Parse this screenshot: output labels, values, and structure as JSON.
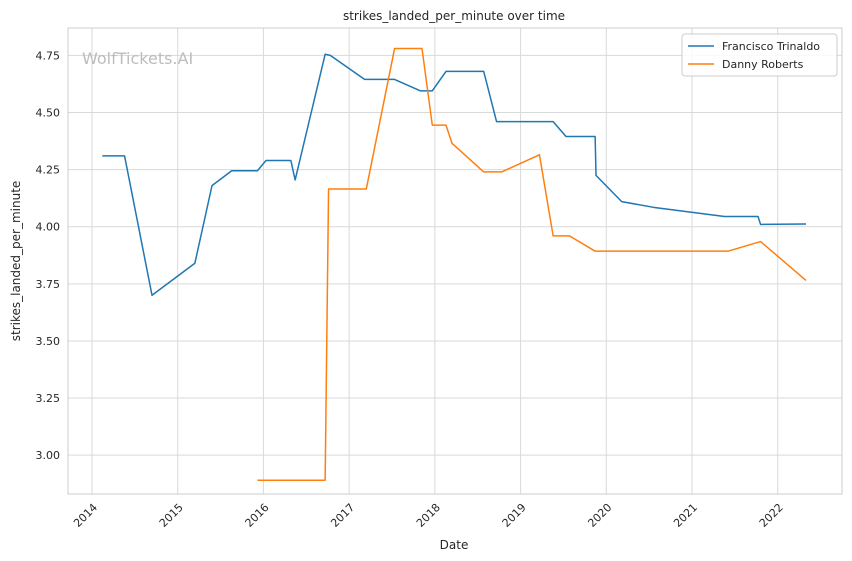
{
  "chart_data": {
    "type": "line",
    "title": "strikes_landed_per_minute over time",
    "xlabel": "Date",
    "ylabel": "strikes_landed_per_minute",
    "watermark": "WolfTickets.AI",
    "xlim": [
      2013.72,
      2022.75
    ],
    "ylim": [
      2.83,
      4.87
    ],
    "x_ticks": [
      2014,
      2015,
      2016,
      2017,
      2018,
      2019,
      2020,
      2021,
      2022
    ],
    "x_tick_labels": [
      "2014",
      "2015",
      "2016",
      "2017",
      "2018",
      "2019",
      "2020",
      "2021",
      "2022"
    ],
    "y_ticks": [
      3.0,
      3.25,
      3.5,
      3.75,
      4.0,
      4.25,
      4.5,
      4.75
    ],
    "y_tick_labels": [
      "3.00",
      "3.25",
      "3.50",
      "3.75",
      "4.00",
      "4.25",
      "4.50",
      "4.75"
    ],
    "grid": true,
    "legend_position": "top-right",
    "series": [
      {
        "name": "Francisco Trinaldo",
        "color": "#1f77b4",
        "points": [
          [
            2014.12,
            4.31
          ],
          [
            2014.38,
            4.31
          ],
          [
            2014.7,
            3.7
          ],
          [
            2015.2,
            3.84
          ],
          [
            2015.4,
            4.18
          ],
          [
            2015.63,
            4.245
          ],
          [
            2015.93,
            4.245
          ],
          [
            2016.03,
            4.29
          ],
          [
            2016.32,
            4.29
          ],
          [
            2016.37,
            4.205
          ],
          [
            2016.72,
            4.755
          ],
          [
            2016.78,
            4.75
          ],
          [
            2017.18,
            4.645
          ],
          [
            2017.53,
            4.645
          ],
          [
            2017.83,
            4.595
          ],
          [
            2017.97,
            4.595
          ],
          [
            2018.13,
            4.68
          ],
          [
            2018.57,
            4.68
          ],
          [
            2018.72,
            4.46
          ],
          [
            2019.38,
            4.46
          ],
          [
            2019.53,
            4.395
          ],
          [
            2019.87,
            4.395
          ],
          [
            2019.88,
            4.225
          ],
          [
            2020.18,
            4.11
          ],
          [
            2020.55,
            4.085
          ],
          [
            2021.38,
            4.045
          ],
          [
            2021.77,
            4.045
          ],
          [
            2021.8,
            4.01
          ],
          [
            2022.33,
            4.012
          ]
        ]
      },
      {
        "name": "Danny Roberts",
        "color": "#ff7f0e",
        "points": [
          [
            2015.93,
            2.89
          ],
          [
            2016.72,
            2.89
          ],
          [
            2016.76,
            4.165
          ],
          [
            2017.2,
            4.165
          ],
          [
            2017.53,
            4.78
          ],
          [
            2017.85,
            4.78
          ],
          [
            2017.97,
            4.445
          ],
          [
            2018.13,
            4.445
          ],
          [
            2018.2,
            4.365
          ],
          [
            2018.57,
            4.24
          ],
          [
            2018.78,
            4.24
          ],
          [
            2019.22,
            4.315
          ],
          [
            2019.38,
            3.96
          ],
          [
            2019.57,
            3.96
          ],
          [
            2019.87,
            3.893
          ],
          [
            2020.55,
            3.893
          ],
          [
            2021.42,
            3.893
          ],
          [
            2021.8,
            3.935
          ],
          [
            2022.33,
            3.765
          ]
        ]
      }
    ]
  }
}
